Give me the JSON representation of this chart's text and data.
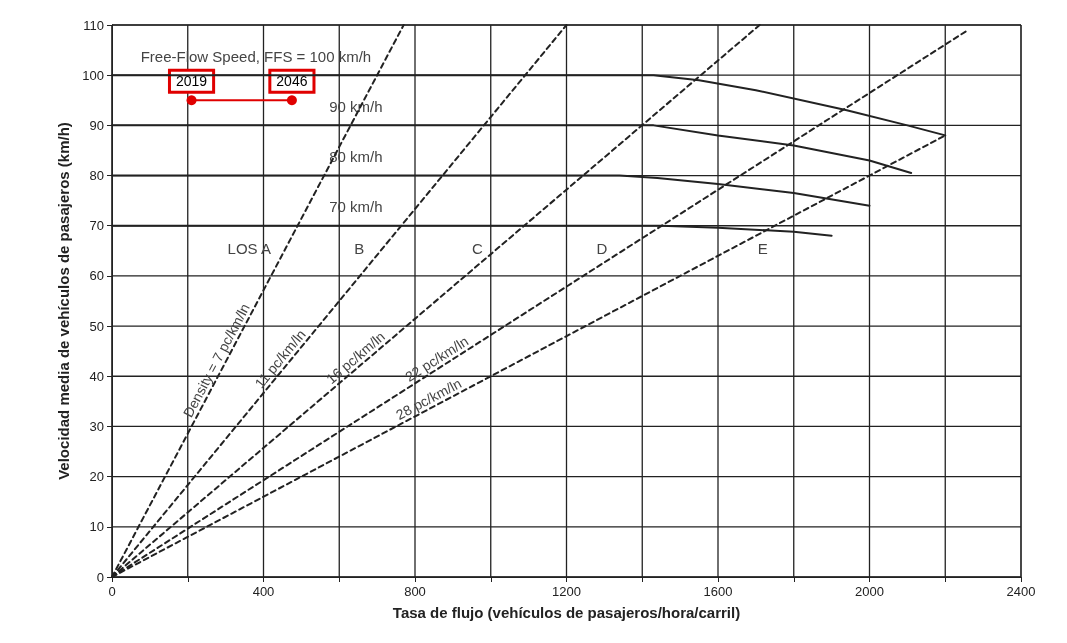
{
  "chart_data": {
    "type": "line",
    "xlabel": "Tasa de flujo (vehículos de pasajeros/hora/carril)",
    "ylabel": "Velocidad media de vehículos de pasajeros (km/h)",
    "xlim": [
      0,
      2400
    ],
    "ylim": [
      0,
      110
    ],
    "xticks": [
      0,
      {
        "value": 200,
        "label": null
      },
      400,
      {
        "value": 600,
        "label": null
      },
      800,
      {
        "value": 1000,
        "label": null
      },
      1200,
      {
        "value": 1400,
        "label": null
      },
      1600,
      {
        "value": 1800,
        "label": null
      },
      2000,
      {
        "value": 2200,
        "label": null
      },
      2400
    ],
    "yticks": [
      0,
      10,
      20,
      30,
      40,
      50,
      60,
      70,
      80,
      90,
      100,
      110
    ],
    "grid": true,
    "legend": false,
    "marker": "none",
    "series": [
      {
        "color": "#222222",
        "line_style": "solid",
        "x": [
          0,
          1430,
          1550,
          1700,
          1940,
          2100,
          2200
        ],
        "values": [
          100,
          100,
          99,
          97,
          93,
          90,
          88
        ]
      },
      {
        "color": "#222222",
        "line_style": "solid",
        "x": [
          0,
          1430,
          1600,
          1800,
          2000,
          2110
        ],
        "values": [
          90,
          90,
          88,
          86,
          83,
          80.5
        ]
      },
      {
        "color": "#222222",
        "line_style": "solid",
        "x": [
          0,
          1340,
          1440,
          1600,
          1800,
          2000
        ],
        "values": [
          80,
          80,
          79.5,
          78.3,
          76.5,
          74
        ]
      },
      {
        "color": "#222222",
        "line_style": "solid",
        "x": [
          0,
          1450,
          1600,
          1800,
          1900
        ],
        "values": [
          70,
          70,
          69.6,
          68.8,
          68
        ]
      },
      {
        "name": "Density = 7 pc/km/ln",
        "color": "#222222",
        "line_style": "dashed",
        "x": [
          0,
          770
        ],
        "values": [
          0,
          110
        ]
      },
      {
        "name": "11 pc/km/ln",
        "color": "#222222",
        "line_style": "dashed",
        "x": [
          0,
          1200
        ],
        "values": [
          0,
          110
        ]
      },
      {
        "name": "16 pc/km/ln",
        "color": "#222222",
        "line_style": "dashed",
        "x": [
          0,
          1710
        ],
        "values": [
          0,
          110
        ]
      },
      {
        "name": "22 pc/km/ln",
        "color": "#222222",
        "line_style": "dashed",
        "x": [
          0,
          2260
        ],
        "values": [
          0,
          109
        ]
      },
      {
        "name": "28 pc/km/ln",
        "color": "#222222",
        "line_style": "dashed",
        "x": [
          0,
          2200
        ],
        "values": [
          0,
          88
        ]
      },
      {
        "color": "#e00000",
        "line_style": "solid",
        "marker": "circle",
        "x": [
          210,
          475
        ],
        "values": [
          95,
          95
        ]
      }
    ],
    "annotations": [
      {
        "text": "Free-Flow Speed, FFS = 100 km/h",
        "x": 380,
        "y": 100
      },
      {
        "text": "90 km/h",
        "x": 644,
        "y": 90
      },
      {
        "text": "80 km/h",
        "x": 644,
        "y": 80
      },
      {
        "text": "70 km/h",
        "x": 644,
        "y": 70
      },
      {
        "text": "2019",
        "x": 210,
        "y": 95
      },
      {
        "text": "2046",
        "x": 475,
        "y": 95
      },
      "LOS A",
      "B",
      "C",
      "D",
      "E"
    ]
  }
}
